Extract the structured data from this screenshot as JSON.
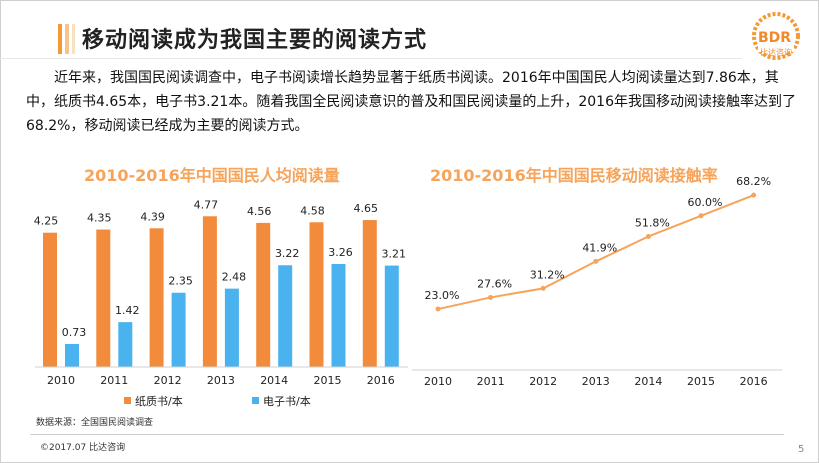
{
  "title": "移动阅读成为我国主要的阅读方式",
  "logo": {
    "main": "BDR",
    "sub": "比达咨询"
  },
  "intro": "近年来，我国国民阅读调查中，电子书阅读增长趋势显著于纸质书阅读。2016年中国国民人均阅读量达到7.86本，其中，纸质书4.65本，电子书3.21本。随着我国全民阅读意识的普及和国民阅读量的上升，2016年我国移动阅读接触率达到了68.2%，移动阅读已经成为主要的阅读方式。",
  "source": "数据来源：全国国民阅读调查",
  "footer": "©2017.07   比达咨询",
  "page_number": "5",
  "colors": {
    "paper": "#f28b3c",
    "ebook": "#4ab3ef",
    "line": "#f7a45a",
    "title_accent": "#f7a45a"
  },
  "chart_data": [
    {
      "type": "bar",
      "title": "2010-2016年中国国民人均阅读量",
      "categories": [
        "2010",
        "2011",
        "2012",
        "2013",
        "2014",
        "2015",
        "2016"
      ],
      "series": [
        {
          "name": "纸质书/本",
          "values": [
            4.25,
            4.35,
            4.39,
            4.77,
            4.56,
            4.58,
            4.65
          ],
          "labels": [
            "4.25",
            "4.35",
            "4.39",
            "4.77",
            "4.56",
            "4.58",
            "4.65"
          ]
        },
        {
          "name": "电子书/本",
          "values": [
            0.73,
            1.42,
            2.35,
            2.48,
            3.22,
            3.26,
            3.21
          ],
          "labels": [
            "0.73",
            "1.42",
            "2.35",
            "2.48",
            "3.22",
            "3.26",
            "3.21"
          ]
        }
      ],
      "ylim": [
        0,
        5
      ],
      "legend": "bottom",
      "grid": false
    },
    {
      "type": "line",
      "title": "2010-2016年中国国民移动阅读接触率",
      "categories": [
        "2010",
        "2011",
        "2012",
        "2013",
        "2014",
        "2015",
        "2016"
      ],
      "series": [
        {
          "name": "移动阅读接触率",
          "values": [
            23.0,
            27.6,
            31.2,
            41.9,
            51.8,
            60.0,
            68.2
          ],
          "labels": [
            "23.0%",
            "27.6%",
            "31.2%",
            "41.9%",
            "51.8%",
            "60.0%",
            "68.2%"
          ]
        }
      ],
      "ylim": [
        0,
        80
      ],
      "grid": false
    }
  ]
}
